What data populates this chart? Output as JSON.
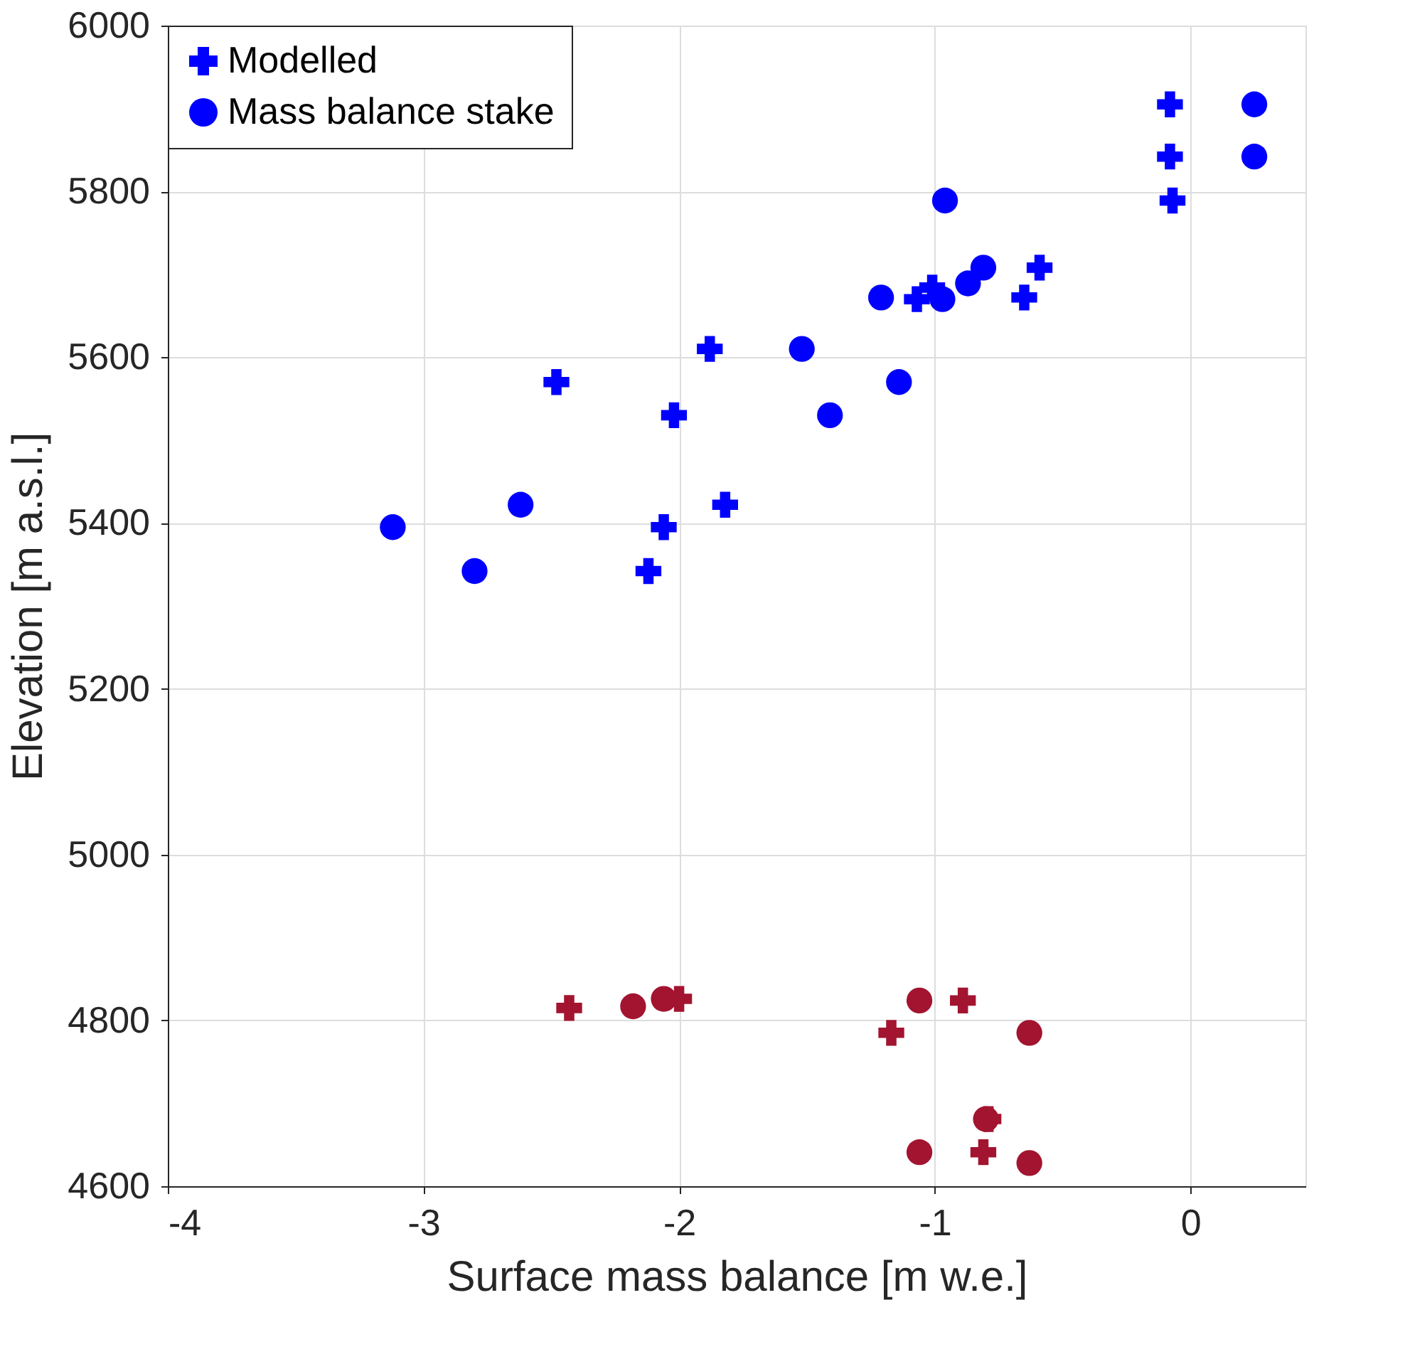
{
  "chart_data": {
    "type": "scatter",
    "xlabel": "Surface mass balance [m w.e.]",
    "ylabel": "Elevation [m a.s.l.]",
    "xlim": [
      -4,
      0.45
    ],
    "xticks": [
      -4,
      -3,
      -2,
      -1,
      0
    ],
    "ylim": [
      4600,
      6000
    ],
    "yticks": [
      4600,
      4800,
      5000,
      5200,
      5400,
      5600,
      5800,
      6000
    ],
    "grid": true,
    "legend": "top left",
    "series": [
      {
        "name": "Modelled",
        "color": "#0000ff",
        "marker": "cross",
        "x": [
          -0.08,
          -0.08,
          -0.07,
          -0.59,
          -0.65,
          -1.01,
          -1.07,
          -1.88,
          -2.48,
          -2.02,
          -1.82,
          -2.06,
          -2.12
        ],
        "values": [
          5905,
          5842,
          5789,
          5708,
          5672,
          5684,
          5670,
          5610,
          5570,
          5530,
          5422,
          5395,
          5342
        ]
      },
      {
        "name": "Mass balance stake",
        "color": "#0000ff",
        "marker": "circle",
        "x": [
          0.25,
          0.25,
          -0.96,
          -0.81,
          -0.87,
          -0.97,
          -1.21,
          -1.52,
          -1.14,
          -1.41,
          -2.62,
          -3.12,
          -2.8
        ],
        "values": [
          5905,
          5842,
          5789,
          5708,
          5689,
          5670,
          5672,
          5610,
          5570,
          5530,
          5422,
          5395,
          5342
        ]
      },
      {
        "color": "#a2142f",
        "marker": "circle",
        "x": [
          -2.18,
          -2.06,
          -1.06,
          -0.63,
          -0.8,
          -1.06,
          -0.63
        ],
        "values": [
          4817,
          4826,
          4824,
          4785,
          4681,
          4641,
          4628
        ]
      },
      {
        "color": "#a2142f",
        "marker": "cross",
        "x": [
          -2.43,
          -2.0,
          -0.89,
          -1.17,
          -0.79,
          -0.81
        ],
        "values": [
          4815,
          4826,
          4824,
          4785,
          4681,
          4641
        ]
      }
    ]
  }
}
